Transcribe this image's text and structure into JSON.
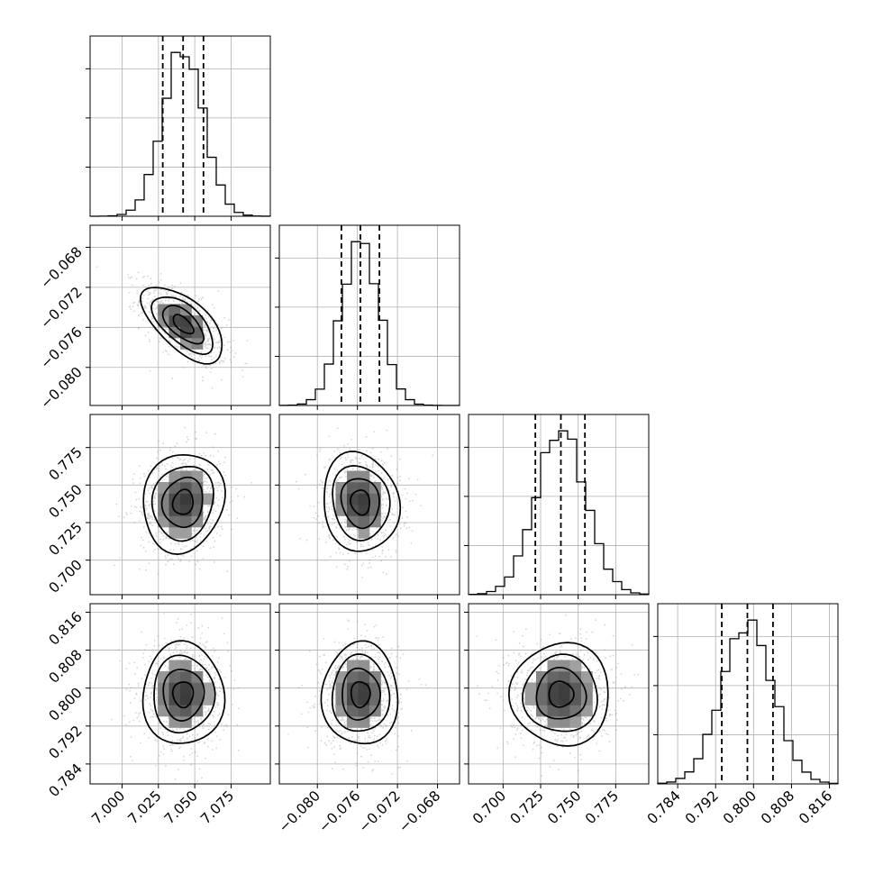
{
  "chart_data": {
    "type": "corner",
    "params": [
      {
        "index": 0,
        "median": 7.042,
        "q16": 7.028,
        "q84": 7.056,
        "range": [
          6.978,
          7.102
        ],
        "ticks": [
          7.0,
          7.025,
          7.05,
          7.075
        ],
        "tick_labels": [
          "7.000",
          "7.025",
          "7.050",
          "7.075"
        ]
      },
      {
        "index": 1,
        "median": -0.0757,
        "q16": -0.0776,
        "q84": -0.0738,
        "range": [
          -0.0838,
          -0.0658
        ],
        "ticks": [
          -0.08,
          -0.076,
          -0.072,
          -0.068
        ],
        "tick_labels": [
          "−0.080",
          "−0.076",
          "−0.072",
          "−0.068"
        ]
      },
      {
        "index": 2,
        "median": 0.7385,
        "q16": 0.7215,
        "q84": 0.7545,
        "range": [
          0.677,
          0.797
        ],
        "ticks": [
          0.7,
          0.725,
          0.75,
          0.775
        ],
        "tick_labels": [
          "0.700",
          "0.725",
          "0.750",
          "0.775"
        ]
      },
      {
        "index": 3,
        "median": 0.7987,
        "q16": 0.7933,
        "q84": 0.8041,
        "range": [
          0.7798,
          0.8178
        ],
        "ticks": [
          0.784,
          0.792,
          0.8,
          0.808,
          0.816
        ],
        "tick_labels": [
          "0.784",
          "0.792",
          "0.800",
          "0.808",
          "0.816"
        ]
      }
    ],
    "correlations": {
      "1-0": -0.62,
      "2-0": 0.1,
      "2-1": -0.1,
      "3-0": 0.0,
      "3-1": 0.0,
      "3-2": 0.0
    },
    "histogram_bins": 20,
    "contour_levels": [
      "0.5 sigma",
      "1 sigma",
      "1.5 sigma",
      "2 sigma"
    ],
    "quantiles": [
      0.16,
      0.5,
      0.84
    ],
    "grid": true
  }
}
